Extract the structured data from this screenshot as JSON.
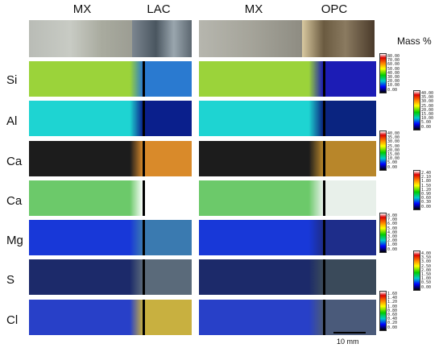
{
  "headers": {
    "left_mx": "MX",
    "left_lac": "LAC",
    "right_mx": "MX",
    "right_opc": "OPC"
  },
  "mass_label": "Mass %",
  "rows": [
    {
      "element": "Si",
      "mx_color": "#9bd33a",
      "inc_color": "#2a7ad0",
      "opc_color": "#1c1cb5"
    },
    {
      "element": "Al",
      "mx_color": "#1ed4d2",
      "inc_color": "#0a1f8c",
      "opc_color": "#0a2480"
    },
    {
      "element": "Ca",
      "mx_color": "#1c1c1c",
      "inc_color": "#d98a2a",
      "opc_color": "#b8862a"
    },
    {
      "element": "Ca",
      "mx_color": "#6cc96a",
      "inc_color": "#ffffff",
      "opc_color": "#e8f0ea"
    },
    {
      "element": "Mg",
      "mx_color": "#1838d8",
      "inc_color": "#3a7ab0",
      "opc_color": "#1e2d8a"
    },
    {
      "element": "S",
      "mx_color": "#1c2a6a",
      "inc_color": "#5a6a7a",
      "opc_color": "#3a4a5a"
    },
    {
      "element": "Cl",
      "mx_color": "#2840c8",
      "inc_color": "#c8b040",
      "opc_color": "#4a5a7a"
    }
  ],
  "scales": [
    {
      "ticks": [
        "80.00",
        "70.00",
        "60.00",
        "50.00",
        "40.00",
        "30.00",
        "20.00",
        "10.00",
        "0.00"
      ]
    },
    {
      "ticks": [
        "40.00",
        "35.00",
        "30.00",
        "25.00",
        "20.00",
        "15.00",
        "10.00",
        "5.00",
        "0.00"
      ]
    },
    {
      "ticks": [
        "40.00",
        "35.00",
        "30.00",
        "25.00",
        "20.00",
        "15.00",
        "10.00",
        "5.00",
        "0.00"
      ]
    },
    {
      "ticks": [
        "2.40",
        "2.10",
        "1.80",
        "1.50",
        "1.20",
        "0.90",
        "0.60",
        "0.30",
        "0.00"
      ]
    },
    {
      "ticks": [
        "8.00",
        "7.00",
        "6.00",
        "5.00",
        "4.00",
        "3.00",
        "2.00",
        "1.00",
        "0.00"
      ]
    },
    {
      "ticks": [
        "4.00",
        "3.50",
        "3.00",
        "2.50",
        "2.00",
        "1.50",
        "1.00",
        "0.50",
        "0.00"
      ]
    },
    {
      "ticks": [
        "1.60",
        "1.40",
        "1.20",
        "1.00",
        "0.80",
        "0.60",
        "0.40",
        "0.20",
        "0.00"
      ]
    }
  ],
  "scalebar": {
    "label": "10 mm"
  }
}
